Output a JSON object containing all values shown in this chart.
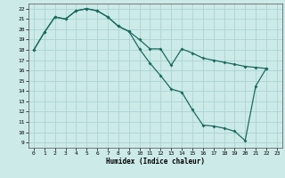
{
  "xlabel": "Humidex (Indice chaleur)",
  "bg_color": "#cceae8",
  "grid_color": "#aad4d2",
  "line_color": "#1a6b5e",
  "xlim": [
    -0.5,
    23.5
  ],
  "ylim": [
    8.5,
    22.5
  ],
  "xticks": [
    0,
    1,
    2,
    3,
    4,
    5,
    6,
    7,
    8,
    9,
    10,
    11,
    12,
    13,
    14,
    15,
    16,
    17,
    18,
    19,
    20,
    21,
    22,
    23
  ],
  "yticks": [
    9,
    10,
    11,
    12,
    13,
    14,
    15,
    16,
    17,
    18,
    19,
    20,
    21,
    22
  ],
  "line1_x": [
    0,
    1,
    2,
    3,
    4,
    5,
    6,
    7,
    8,
    9,
    10,
    11,
    12,
    13,
    14,
    15,
    16,
    17,
    18,
    19,
    20,
    21,
    22
  ],
  "line1_y": [
    18,
    19.7,
    21.2,
    21.0,
    21.8,
    22.0,
    21.8,
    21.2,
    20.3,
    19.8,
    19.0,
    18.1,
    18.1,
    16.5,
    18.1,
    17.7,
    17.2,
    17.0,
    16.8,
    16.6,
    16.4,
    16.3,
    16.2
  ],
  "line2_x": [
    0,
    1,
    2,
    3,
    4,
    5,
    6,
    7,
    8,
    9,
    10,
    11,
    12,
    13,
    14,
    15,
    16,
    17,
    18,
    19,
    20,
    21,
    22
  ],
  "line2_y": [
    18,
    19.7,
    21.2,
    21.0,
    21.8,
    22.0,
    21.8,
    21.2,
    20.3,
    19.8,
    18.1,
    16.7,
    15.5,
    14.2,
    13.9,
    12.2,
    10.7,
    10.6,
    10.4,
    10.1,
    9.2,
    14.5,
    16.2
  ]
}
